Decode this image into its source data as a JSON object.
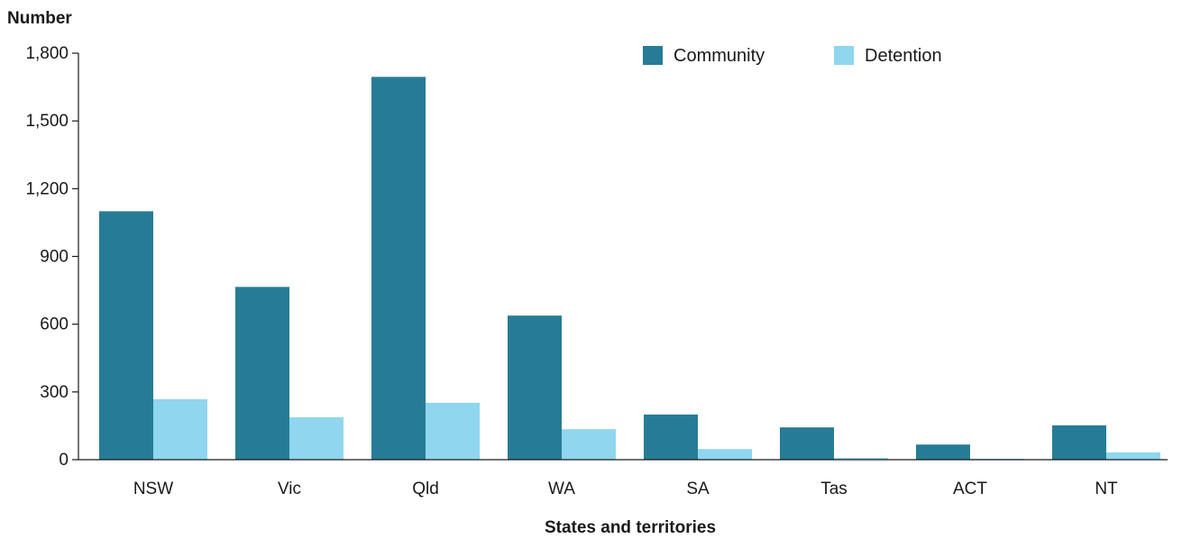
{
  "chart_data": {
    "type": "bar",
    "ylabel": "Number",
    "xlabel": "States and territories",
    "categories": [
      "NSW",
      "Vic",
      "Qld",
      "WA",
      "SA",
      "Tas",
      "ACT",
      "NT"
    ],
    "series": [
      {
        "name": "Community",
        "color": "#267c96",
        "values": [
          1100,
          765,
          1695,
          638,
          200,
          143,
          67,
          152
        ]
      },
      {
        "name": "Detention",
        "color": "#8fd6ee",
        "values": [
          268,
          188,
          252,
          135,
          47,
          8,
          4,
          32
        ]
      }
    ],
    "ylim": [
      0,
      1800
    ],
    "yticks": [
      0,
      300,
      600,
      900,
      1200,
      1500,
      1800
    ],
    "ytick_labels": [
      "0",
      "300",
      "600",
      "900",
      "1,200",
      "1,500",
      "1,800"
    ],
    "grid": false,
    "legend_position": "top-right"
  }
}
